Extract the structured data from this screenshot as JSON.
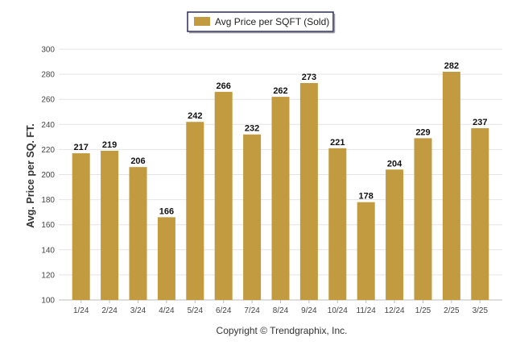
{
  "chart_data": {
    "type": "bar",
    "categories": [
      "1/24",
      "2/24",
      "3/24",
      "4/24",
      "5/24",
      "6/24",
      "7/24",
      "8/24",
      "9/24",
      "10/24",
      "11/24",
      "12/24",
      "1/25",
      "2/25",
      "3/25"
    ],
    "series": [
      {
        "name": "Avg Price per SQFT (Sold)",
        "values": [
          217,
          219,
          206,
          166,
          242,
          266,
          232,
          262,
          273,
          221,
          178,
          204,
          229,
          282,
          237
        ],
        "color": "#c29a3f"
      }
    ],
    "ylabel": "Avg. Price per SQ. FT.",
    "ylim": [
      100,
      300
    ],
    "yticks": [
      100,
      120,
      140,
      160,
      180,
      200,
      220,
      240,
      260,
      280,
      300
    ],
    "grid": true,
    "legend_position": "top-center",
    "data_labels": true
  },
  "footer": {
    "copyright": "Copyright © Trendgraphix, Inc."
  }
}
